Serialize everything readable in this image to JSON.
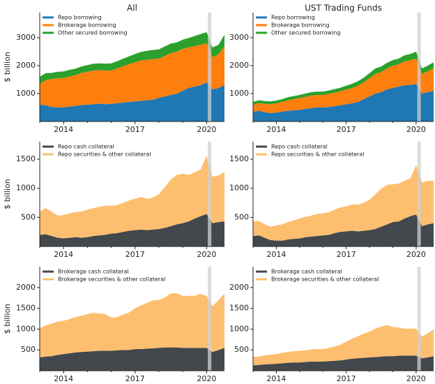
{
  "chart_data": [
    {
      "type": "stacked_area",
      "title": "All",
      "ylabel": "$ billion",
      "x": [
        2013,
        2013.25,
        2013.5,
        2013.75,
        2014,
        2014.25,
        2014.5,
        2014.75,
        2015,
        2015.25,
        2015.5,
        2015.75,
        2016,
        2016.25,
        2016.5,
        2016.75,
        2017,
        2017.25,
        2017.5,
        2017.75,
        2018,
        2018.25,
        2018.5,
        2018.75,
        2019,
        2019.25,
        2019.5,
        2019.75,
        2020,
        2020.25,
        2020.5,
        2020.75
      ],
      "xlim": [
        2013,
        2020.75
      ],
      "xticks": [
        2014,
        2017,
        2020
      ],
      "xminorticks": [
        2013,
        2015,
        2016,
        2018,
        2019
      ],
      "ylim": [
        0,
        3900
      ],
      "yticks": [
        1000,
        2000,
        3000
      ],
      "shade": [
        2020.05,
        2020.2
      ],
      "shade_color": "#d0d0d0",
      "legend": "upper left",
      "series": [
        {
          "name": "Repo borrowing",
          "color": "#1f77b4",
          "values": [
            600,
            580,
            520,
            500,
            510,
            530,
            560,
            590,
            600,
            620,
            640,
            620,
            630,
            650,
            680,
            700,
            720,
            740,
            760,
            780,
            850,
            900,
            950,
            1000,
            1100,
            1200,
            1250,
            1300,
            1400,
            1150,
            1200,
            1300
          ]
        },
        {
          "name": "Brokerage borrowing",
          "color": "#ff7f0e",
          "values": [
            750,
            900,
            1000,
            1050,
            1050,
            1080,
            1100,
            1150,
            1180,
            1200,
            1200,
            1200,
            1200,
            1250,
            1300,
            1350,
            1400,
            1450,
            1450,
            1450,
            1400,
            1450,
            1500,
            1500,
            1500,
            1450,
            1450,
            1450,
            1400,
            1150,
            1200,
            1400
          ]
        },
        {
          "name": "Other secured borrowing",
          "color": "#2ca02c",
          "values": [
            250,
            250,
            220,
            230,
            230,
            240,
            230,
            230,
            240,
            250,
            240,
            250,
            250,
            260,
            270,
            280,
            300,
            300,
            320,
            330,
            330,
            340,
            340,
            330,
            330,
            340,
            360,
            380,
            400,
            350,
            350,
            400
          ]
        }
      ]
    },
    {
      "type": "stacked_area",
      "title": "UST Trading Funds",
      "x": [
        2013,
        2013.25,
        2013.5,
        2013.75,
        2014,
        2014.25,
        2014.5,
        2014.75,
        2015,
        2015.25,
        2015.5,
        2015.75,
        2016,
        2016.25,
        2016.5,
        2016.75,
        2017,
        2017.25,
        2017.5,
        2017.75,
        2018,
        2018.25,
        2018.5,
        2018.75,
        2019,
        2019.25,
        2019.5,
        2019.75,
        2020,
        2020.25,
        2020.5,
        2020.75
      ],
      "xlim": [
        2013,
        2020.75
      ],
      "xticks": [
        2014,
        2017,
        2020
      ],
      "xminorticks": [
        2013,
        2015,
        2016,
        2018,
        2019
      ],
      "ylim": [
        0,
        3900
      ],
      "yticks": [
        1000,
        2000,
        3000
      ],
      "shade": [
        2020.05,
        2020.2
      ],
      "shade_color": "#d0d0d0",
      "legend": "upper left",
      "series": [
        {
          "name": "Repo borrowing",
          "color": "#1f77b4",
          "values": [
            350,
            380,
            330,
            300,
            320,
            350,
            380,
            400,
            420,
            450,
            480,
            500,
            500,
            520,
            550,
            580,
            620,
            650,
            700,
            800,
            900,
            1000,
            1050,
            1150,
            1200,
            1250,
            1300,
            1300,
            1350,
            1000,
            1050,
            1100
          ]
        },
        {
          "name": "Brokerage borrowing",
          "color": "#ff7f0e",
          "values": [
            250,
            280,
            300,
            320,
            330,
            350,
            380,
            400,
            420,
            430,
            450,
            450,
            450,
            470,
            480,
            500,
            520,
            550,
            580,
            600,
            650,
            700,
            720,
            750,
            800,
            800,
            850,
            900,
            900,
            700,
            750,
            800
          ]
        },
        {
          "name": "Other secured borrowing",
          "color": "#2ca02c",
          "values": [
            100,
            100,
            100,
            100,
            100,
            100,
            110,
            110,
            110,
            120,
            120,
            120,
            120,
            120,
            130,
            130,
            140,
            150,
            160,
            170,
            180,
            200,
            200,
            200,
            200,
            200,
            220,
            220,
            250,
            200,
            200,
            220
          ]
        }
      ]
    },
    {
      "type": "stacked_area",
      "ylabel": "$ billion",
      "x": [
        2013,
        2013.25,
        2013.5,
        2013.75,
        2014,
        2014.25,
        2014.5,
        2014.75,
        2015,
        2015.25,
        2015.5,
        2015.75,
        2016,
        2016.25,
        2016.5,
        2016.75,
        2017,
        2017.25,
        2017.5,
        2017.75,
        2018,
        2018.25,
        2018.5,
        2018.75,
        2019,
        2019.25,
        2019.5,
        2019.75,
        2020,
        2020.25,
        2020.5,
        2020.75
      ],
      "xlim": [
        2013,
        2020.75
      ],
      "xticks": [
        2014,
        2017,
        2020
      ],
      "xminorticks": [
        2013,
        2015,
        2016,
        2018,
        2019
      ],
      "ylim": [
        0,
        1800
      ],
      "yticks": [
        500,
        1000,
        1500
      ],
      "shade": [
        2020.05,
        2020.2
      ],
      "shade_color": "#d0d0d0",
      "legend": "upper left",
      "series": [
        {
          "name": "Repo cash collateral",
          "color": "#43484c",
          "values": [
            200,
            210,
            180,
            150,
            140,
            150,
            160,
            150,
            160,
            180,
            190,
            200,
            220,
            230,
            250,
            270,
            280,
            290,
            280,
            290,
            300,
            320,
            350,
            380,
            400,
            430,
            480,
            520,
            560,
            400,
            420,
            430
          ]
        },
        {
          "name": "Repo securities & other collateral",
          "color": "#fdbf6f",
          "values": [
            400,
            450,
            420,
            380,
            400,
            420,
            430,
            450,
            470,
            480,
            490,
            500,
            480,
            480,
            500,
            520,
            540,
            560,
            540,
            550,
            600,
            700,
            800,
            850,
            850,
            800,
            800,
            800,
            1000,
            800,
            800,
            850
          ]
        }
      ]
    },
    {
      "type": "stacked_area",
      "x": [
        2013,
        2013.25,
        2013.5,
        2013.75,
        2014,
        2014.25,
        2014.5,
        2014.75,
        2015,
        2015.25,
        2015.5,
        2015.75,
        2016,
        2016.25,
        2016.5,
        2016.75,
        2017,
        2017.25,
        2017.5,
        2017.75,
        2018,
        2018.25,
        2018.5,
        2018.75,
        2019,
        2019.25,
        2019.5,
        2019.75,
        2020,
        2020.25,
        2020.5,
        2020.75
      ],
      "xlim": [
        2013,
        2020.75
      ],
      "xticks": [
        2014,
        2017,
        2020
      ],
      "xminorticks": [
        2013,
        2015,
        2016,
        2018,
        2019
      ],
      "ylim": [
        0,
        1800
      ],
      "yticks": [
        500,
        1000,
        1500
      ],
      "shade": [
        2020.05,
        2020.2
      ],
      "shade_color": "#d0d0d0",
      "legend": "upper left",
      "series": [
        {
          "name": "Repo cash collateral",
          "color": "#43484c",
          "values": [
            180,
            190,
            150,
            110,
            100,
            100,
            120,
            130,
            140,
            160,
            170,
            180,
            190,
            200,
            230,
            250,
            260,
            270,
            260,
            270,
            280,
            300,
            340,
            380,
            420,
            430,
            480,
            520,
            550,
            350,
            380,
            400
          ]
        },
        {
          "name": "Repo securities & other collateral",
          "color": "#fdbf6f",
          "values": [
            250,
            250,
            230,
            230,
            260,
            280,
            300,
            320,
            340,
            350,
            360,
            380,
            380,
            390,
            400,
            420,
            430,
            450,
            460,
            480,
            520,
            600,
            650,
            680,
            650,
            650,
            650,
            650,
            850,
            750,
            750,
            730
          ]
        }
      ]
    },
    {
      "type": "stacked_area",
      "ylabel": "$ billion",
      "x": [
        2013,
        2013.25,
        2013.5,
        2013.75,
        2014,
        2014.25,
        2014.5,
        2014.75,
        2015,
        2015.25,
        2015.5,
        2015.75,
        2016,
        2016.25,
        2016.5,
        2016.75,
        2017,
        2017.25,
        2017.5,
        2017.75,
        2018,
        2018.25,
        2018.5,
        2018.75,
        2019,
        2019.25,
        2019.5,
        2019.75,
        2020,
        2020.25,
        2020.5,
        2020.75
      ],
      "xlim": [
        2013,
        2020.75
      ],
      "xticks": [
        2014,
        2017,
        2020
      ],
      "xminorticks": [
        2013,
        2015,
        2016,
        2018,
        2019
      ],
      "ylim": [
        0,
        2500
      ],
      "yticks": [
        500,
        1000,
        1500,
        2000
      ],
      "shade": [
        2020.05,
        2020.2
      ],
      "shade_color": "#d0d0d0",
      "legend": "upper left",
      "series": [
        {
          "name": "Brokerage cash collateral",
          "color": "#43484c",
          "values": [
            320,
            340,
            350,
            380,
            400,
            420,
            440,
            450,
            460,
            470,
            480,
            480,
            480,
            490,
            500,
            500,
            520,
            520,
            530,
            540,
            550,
            560,
            560,
            560,
            550,
            550,
            550,
            550,
            550,
            450,
            500,
            550
          ]
        },
        {
          "name": "Brokerage securities & other collateral",
          "color": "#fdbf6f",
          "values": [
            700,
            750,
            780,
            800,
            800,
            820,
            850,
            870,
            900,
            920,
            900,
            880,
            800,
            800,
            850,
            900,
            980,
            1050,
            1100,
            1150,
            1150,
            1200,
            1300,
            1300,
            1250,
            1250,
            1250,
            1300,
            1250,
            1100,
            1200,
            1300
          ]
        }
      ]
    },
    {
      "type": "stacked_area",
      "x": [
        2013,
        2013.25,
        2013.5,
        2013.75,
        2014,
        2014.25,
        2014.5,
        2014.75,
        2015,
        2015.25,
        2015.5,
        2015.75,
        2016,
        2016.25,
        2016.5,
        2016.75,
        2017,
        2017.25,
        2017.5,
        2017.75,
        2018,
        2018.25,
        2018.5,
        2018.75,
        2019,
        2019.25,
        2019.5,
        2019.75,
        2020,
        2020.25,
        2020.5,
        2020.75
      ],
      "xlim": [
        2013,
        2020.75
      ],
      "xticks": [
        2014,
        2017,
        2020
      ],
      "xminorticks": [
        2013,
        2015,
        2016,
        2018,
        2019
      ],
      "ylim": [
        0,
        2500
      ],
      "yticks": [
        500,
        1000,
        1500,
        2000
      ],
      "shade": [
        2020.05,
        2020.2
      ],
      "shade_color": "#d0d0d0",
      "legend": "upper left",
      "series": [
        {
          "name": "Brokerage cash collateral",
          "color": "#43484c",
          "values": [
            130,
            140,
            150,
            160,
            170,
            180,
            190,
            200,
            200,
            210,
            220,
            220,
            220,
            230,
            240,
            250,
            270,
            290,
            300,
            310,
            320,
            330,
            340,
            350,
            350,
            360,
            360,
            360,
            360,
            300,
            320,
            350
          ]
        },
        {
          "name": "Brokerage securities & other collateral",
          "color": "#fdbf6f",
          "values": [
            200,
            200,
            220,
            230,
            230,
            250,
            260,
            270,
            280,
            280,
            290,
            300,
            300,
            320,
            340,
            380,
            430,
            480,
            530,
            580,
            620,
            680,
            720,
            750,
            700,
            680,
            650,
            650,
            650,
            520,
            580,
            650
          ]
        }
      ]
    }
  ]
}
